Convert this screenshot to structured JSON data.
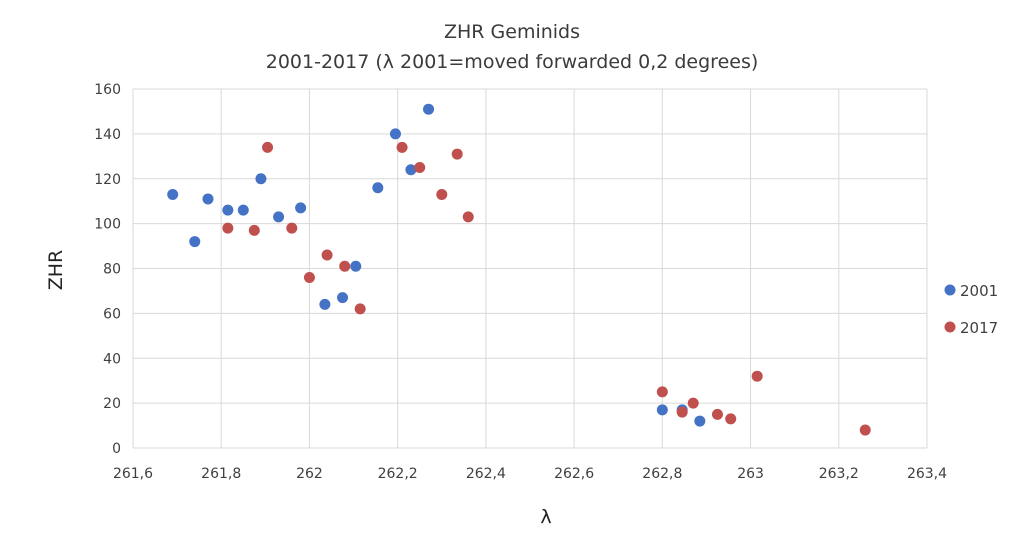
{
  "chart_data": {
    "type": "scatter",
    "title": "ZHR  Geminids",
    "subtitle": "2001-2017  (λ 2001=moved forwarded 0,2 degrees)",
    "xlabel": "λ",
    "ylabel": "ZHR",
    "xlim": [
      261.6,
      263.4
    ],
    "ylim": [
      0,
      160
    ],
    "x_ticks": [
      261.6,
      261.8,
      262.0,
      262.2,
      262.4,
      262.6,
      262.8,
      263.0,
      263.2,
      263.4
    ],
    "x_tick_labels": [
      "261,6",
      "261,8",
      "262",
      "262,2",
      "262,4",
      "262,6",
      "262,8",
      "263",
      "263,2",
      "263,4"
    ],
    "y_ticks": [
      0,
      20,
      40,
      60,
      80,
      100,
      120,
      140,
      160
    ],
    "y_tick_labels": [
      "0",
      "20",
      "40",
      "60",
      "80",
      "100",
      "120",
      "140",
      "160"
    ],
    "grid": true,
    "legend_position": "right",
    "series": [
      {
        "name": "2001",
        "color": "#4472c4",
        "points": [
          [
            261.69,
            113
          ],
          [
            261.74,
            92
          ],
          [
            261.77,
            111
          ],
          [
            261.815,
            106
          ],
          [
            261.85,
            106
          ],
          [
            261.89,
            120
          ],
          [
            261.93,
            103
          ],
          [
            261.98,
            107
          ],
          [
            262.035,
            64
          ],
          [
            262.075,
            67
          ],
          [
            262.105,
            81
          ],
          [
            262.155,
            116
          ],
          [
            262.195,
            140
          ],
          [
            262.23,
            124
          ],
          [
            262.27,
            151
          ],
          [
            262.8,
            17
          ],
          [
            262.845,
            17
          ],
          [
            262.885,
            12
          ]
        ]
      },
      {
        "name": "2017",
        "color": "#c0504d",
        "points": [
          [
            261.815,
            98
          ],
          [
            261.875,
            97
          ],
          [
            261.905,
            134
          ],
          [
            261.96,
            98
          ],
          [
            262.0,
            76
          ],
          [
            262.04,
            86
          ],
          [
            262.08,
            81
          ],
          [
            262.115,
            62
          ],
          [
            262.21,
            134
          ],
          [
            262.25,
            125
          ],
          [
            262.3,
            113
          ],
          [
            262.335,
            131
          ],
          [
            262.36,
            103
          ],
          [
            262.8,
            25
          ],
          [
            262.845,
            16
          ],
          [
            262.87,
            20
          ],
          [
            262.925,
            15
          ],
          [
            262.955,
            13
          ],
          [
            263.015,
            32
          ],
          [
            263.26,
            8
          ]
        ]
      }
    ]
  }
}
